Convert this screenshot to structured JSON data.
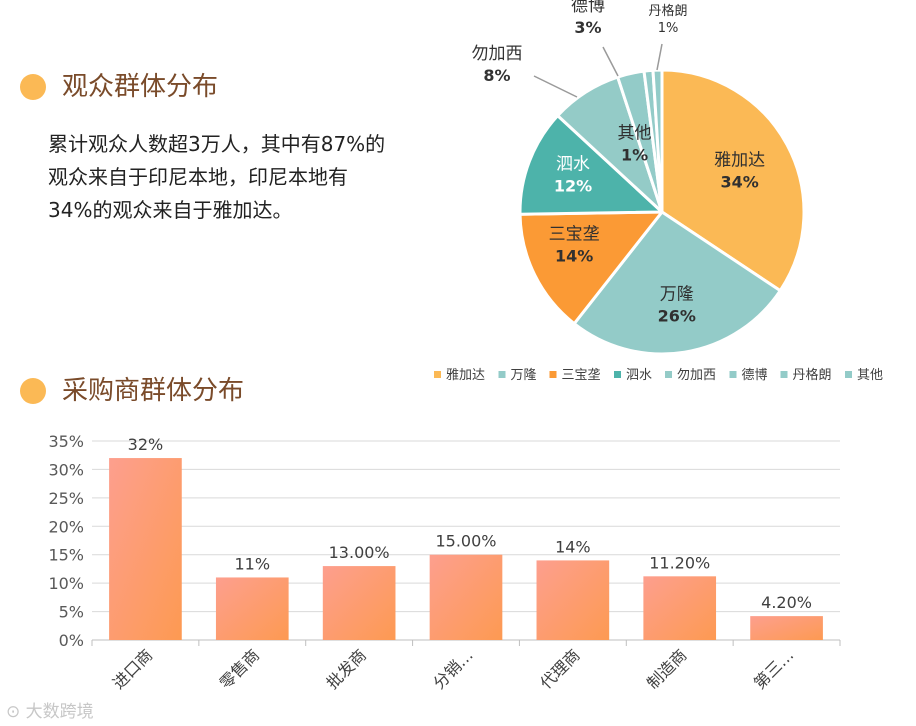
{
  "audience": {
    "title": "观众群体分布",
    "desc": [
      "累计观众人数超3万人，其中有87%的",
      "观众来自于印尼本地，印尼本地有",
      "34%的观众来自于雅加达。"
    ]
  },
  "buyer": {
    "title": "采购商群体分布"
  },
  "watermark": "大数跨境",
  "colors": {
    "orange_dot": "#fbb955",
    "bar_top": "#fd9f8e",
    "bar_bottom": "#fd9a52"
  },
  "chart_data": [
    {
      "type": "pie",
      "slices": [
        {
          "name": "雅加达",
          "value": 34,
          "label": "34%",
          "color": "#fbb955"
        },
        {
          "name": "万隆",
          "value": 26,
          "label": "26%",
          "color": "#93cbc8"
        },
        {
          "name": "三宝垄",
          "value": 14,
          "label": "14%",
          "color": "#fb9a35"
        },
        {
          "name": "泗水",
          "value": 12,
          "label": "12%",
          "color": "#4db3aa"
        },
        {
          "name": "勿加西",
          "value": 8,
          "label": "8%",
          "color": "#94cbc7"
        },
        {
          "name": "德博",
          "value": 3,
          "label": "3%",
          "color": "#93cbc8"
        },
        {
          "name": "丹格朗",
          "value": 1,
          "label": "1%",
          "color": "#93cbc8"
        },
        {
          "name": "其他",
          "value": 1,
          "label": "1%",
          "color": "#93cbc8"
        }
      ],
      "legend_position": "bottom"
    },
    {
      "type": "bar",
      "categories": [
        "进口商",
        "零售商",
        "批发商",
        "分销…",
        "代理商",
        "制造商",
        "第三…"
      ],
      "values": [
        32,
        11,
        13,
        15,
        14,
        11.2,
        4.2
      ],
      "data_labels": [
        "32%",
        "11%",
        "13.00%",
        "15.00%",
        "14%",
        "11.20%",
        "4.20%"
      ],
      "yticks": [
        "0%",
        "5%",
        "10%",
        "15%",
        "20%",
        "25%",
        "30%",
        "35%"
      ],
      "ylim": [
        0,
        35
      ],
      "grid": true
    }
  ]
}
